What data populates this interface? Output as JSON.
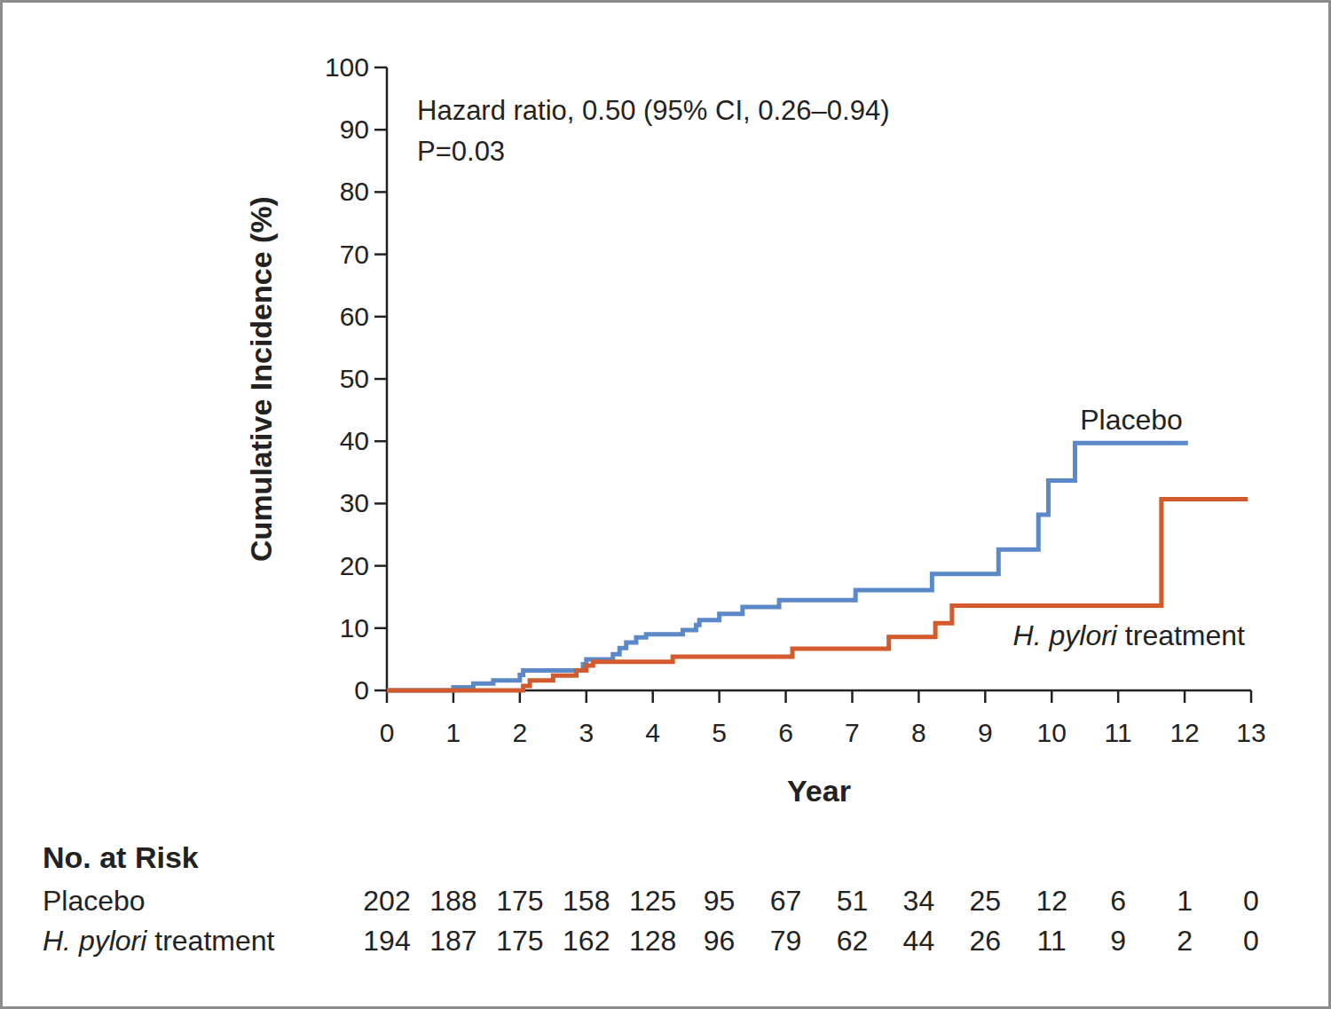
{
  "chart_data": {
    "type": "step",
    "annotations": [
      "Hazard ratio, 0.50 (95% CI, 0.26–0.94)",
      "P=0.03"
    ],
    "x_label": "Year",
    "y_label": "Cumulative Incidence (%)",
    "xlim": [
      0,
      13
    ],
    "ylim": [
      0,
      100
    ],
    "xticks": [
      0,
      1,
      2,
      3,
      4,
      5,
      6,
      7,
      8,
      9,
      10,
      11,
      12,
      13
    ],
    "yticks": [
      0,
      10,
      20,
      30,
      40,
      50,
      60,
      70,
      80,
      90,
      100
    ],
    "grid": false,
    "series": [
      {
        "name": "Placebo",
        "color": "#5b88c8",
        "line_style": "solid",
        "x": [
          0,
          1.0,
          1.3,
          1.6,
          2.0,
          2.05,
          2.95,
          3.0,
          3.4,
          3.5,
          3.6,
          3.75,
          3.9,
          4.45,
          4.65,
          4.7,
          5.0,
          5.35,
          5.9,
          7.05,
          8.2,
          9.2,
          9.8,
          9.95,
          10.35,
          12.05
        ],
        "values": [
          0,
          0.5,
          1.1,
          1.6,
          2.5,
          3.2,
          4.2,
          5.0,
          5.8,
          6.8,
          7.7,
          8.5,
          9.0,
          9.7,
          10.5,
          11.3,
          12.3,
          13.4,
          14.5,
          16.1,
          18.7,
          22.6,
          28.2,
          33.7,
          39.7,
          39.7
        ]
      },
      {
        "name": "H. pylori treatment",
        "color": "#d35a2c",
        "line_style": "solid",
        "x": [
          0,
          2.05,
          2.15,
          2.5,
          2.85,
          3.0,
          3.1,
          4.3,
          6.1,
          7.55,
          8.25,
          8.5,
          11.65,
          12.95
        ],
        "values": [
          0,
          0.7,
          1.6,
          2.4,
          3.2,
          4.0,
          4.6,
          5.4,
          6.7,
          8.6,
          10.8,
          13.6,
          30.7,
          30.7
        ]
      }
    ],
    "at_risk": {
      "title": "No. at Risk",
      "rows": [
        {
          "name": "Placebo",
          "values": [
            202,
            188,
            175,
            158,
            125,
            95,
            67,
            51,
            34,
            25,
            12,
            6,
            1,
            0
          ]
        },
        {
          "name": "H. pylori treatment",
          "values": [
            194,
            187,
            175,
            162,
            128,
            96,
            79,
            62,
            44,
            26,
            11,
            9,
            2,
            0
          ]
        }
      ]
    }
  }
}
